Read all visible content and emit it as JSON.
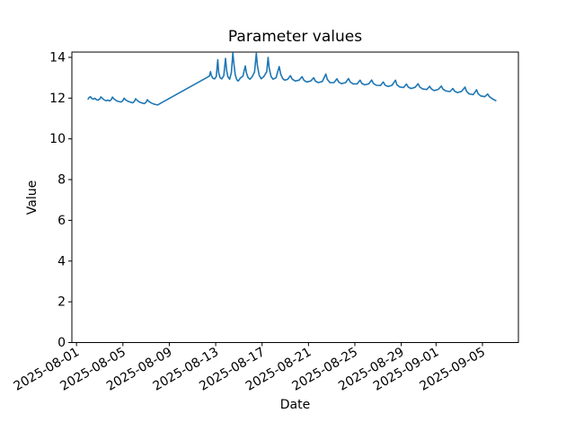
{
  "figure": {
    "background": "#ffffff"
  },
  "chart_data": {
    "type": "line",
    "title": "Parameter values",
    "xlabel": "Date",
    "ylabel": "Value",
    "grid": false,
    "legend": "none",
    "axis_color": "#000000",
    "tick_label_color": "#000000",
    "x_start_date": "2025-08-01",
    "x_unit": "days since 2025-08-01",
    "xlim_days": [
      -0.4,
      38.1
    ],
    "ylim": [
      0,
      14.26
    ],
    "yticks": [
      0,
      2,
      4,
      6,
      8,
      10,
      12,
      14
    ],
    "xticks": [
      {
        "day": 0,
        "label": "2025-08-01"
      },
      {
        "day": 4,
        "label": "2025-08-05"
      },
      {
        "day": 8,
        "label": "2025-08-09"
      },
      {
        "day": 12,
        "label": "2025-08-13"
      },
      {
        "day": 16,
        "label": "2025-08-17"
      },
      {
        "day": 20,
        "label": "2025-08-21"
      },
      {
        "day": 24,
        "label": "2025-08-25"
      },
      {
        "day": 28,
        "label": "2025-08-29"
      },
      {
        "day": 31,
        "label": "2025-09-01"
      },
      {
        "day": 35,
        "label": "2025-09-05"
      }
    ],
    "series": [
      {
        "name": "parameter",
        "color": "#1f77b4",
        "line_width": 1.6,
        "points": [
          [
            1.0,
            11.96
          ],
          [
            1.1,
            12.04
          ],
          [
            1.2,
            12.07
          ],
          [
            1.3,
            11.99
          ],
          [
            1.45,
            11.95
          ],
          [
            1.6,
            11.99
          ],
          [
            1.7,
            11.93
          ],
          [
            1.85,
            11.9
          ],
          [
            2.0,
            11.95
          ],
          [
            2.1,
            12.06
          ],
          [
            2.25,
            11.98
          ],
          [
            2.4,
            11.91
          ],
          [
            2.55,
            11.87
          ],
          [
            2.7,
            11.9
          ],
          [
            2.85,
            11.86
          ],
          [
            3.0,
            11.93
          ],
          [
            3.1,
            12.05
          ],
          [
            3.25,
            11.95
          ],
          [
            3.45,
            11.87
          ],
          [
            3.65,
            11.83
          ],
          [
            3.85,
            11.81
          ],
          [
            4.0,
            11.88
          ],
          [
            4.1,
            12.0
          ],
          [
            4.25,
            11.91
          ],
          [
            4.45,
            11.84
          ],
          [
            4.65,
            11.8
          ],
          [
            4.85,
            11.77
          ],
          [
            5.0,
            11.85
          ],
          [
            5.1,
            11.97
          ],
          [
            5.25,
            11.88
          ],
          [
            5.45,
            11.8
          ],
          [
            5.65,
            11.76
          ],
          [
            5.85,
            11.73
          ],
          [
            6.0,
            11.8
          ],
          [
            6.1,
            11.92
          ],
          [
            6.25,
            11.83
          ],
          [
            6.45,
            11.76
          ],
          [
            6.65,
            11.71
          ],
          [
            6.85,
            11.68
          ],
          [
            7.0,
            11.67
          ],
          [
            11.45,
            13.08
          ],
          [
            11.55,
            13.3
          ],
          [
            11.62,
            13.12
          ],
          [
            11.75,
            12.98
          ],
          [
            11.9,
            12.94
          ],
          [
            12.05,
            13.05
          ],
          [
            12.18,
            13.88
          ],
          [
            12.26,
            13.25
          ],
          [
            12.38,
            13.0
          ],
          [
            12.52,
            12.94
          ],
          [
            12.7,
            13.1
          ],
          [
            12.85,
            13.95
          ],
          [
            12.95,
            13.35
          ],
          [
            13.05,
            13.05
          ],
          [
            13.2,
            12.93
          ],
          [
            13.35,
            13.25
          ],
          [
            13.48,
            14.22
          ],
          [
            13.56,
            13.75
          ],
          [
            13.68,
            13.15
          ],
          [
            13.82,
            12.9
          ],
          [
            13.95,
            12.84
          ],
          [
            14.15,
            13.0
          ],
          [
            14.35,
            13.08
          ],
          [
            14.55,
            13.58
          ],
          [
            14.66,
            13.22
          ],
          [
            14.8,
            13.0
          ],
          [
            14.95,
            12.93
          ],
          [
            15.15,
            13.05
          ],
          [
            15.35,
            13.28
          ],
          [
            15.5,
            14.2
          ],
          [
            15.6,
            13.6
          ],
          [
            15.75,
            13.12
          ],
          [
            15.92,
            12.95
          ],
          [
            16.15,
            13.05
          ],
          [
            16.4,
            13.3
          ],
          [
            16.52,
            14.0
          ],
          [
            16.62,
            13.45
          ],
          [
            16.78,
            13.05
          ],
          [
            16.95,
            12.93
          ],
          [
            17.2,
            13.0
          ],
          [
            17.48,
            13.55
          ],
          [
            17.6,
            13.18
          ],
          [
            17.78,
            12.96
          ],
          [
            17.95,
            12.88
          ],
          [
            18.2,
            12.92
          ],
          [
            18.45,
            13.1
          ],
          [
            18.6,
            12.93
          ],
          [
            18.85,
            12.84
          ],
          [
            19.2,
            12.88
          ],
          [
            19.45,
            13.05
          ],
          [
            19.6,
            12.88
          ],
          [
            19.85,
            12.79
          ],
          [
            20.2,
            12.84
          ],
          [
            20.45,
            13.0
          ],
          [
            20.6,
            12.83
          ],
          [
            20.85,
            12.76
          ],
          [
            21.2,
            12.82
          ],
          [
            21.5,
            13.18
          ],
          [
            21.62,
            12.92
          ],
          [
            21.85,
            12.76
          ],
          [
            22.2,
            12.76
          ],
          [
            22.45,
            12.95
          ],
          [
            22.6,
            12.79
          ],
          [
            22.85,
            12.71
          ],
          [
            23.2,
            12.76
          ],
          [
            23.45,
            12.96
          ],
          [
            23.6,
            12.79
          ],
          [
            23.85,
            12.7
          ],
          [
            24.2,
            12.7
          ],
          [
            24.45,
            12.88
          ],
          [
            24.6,
            12.72
          ],
          [
            24.85,
            12.65
          ],
          [
            25.2,
            12.7
          ],
          [
            25.45,
            12.89
          ],
          [
            25.6,
            12.72
          ],
          [
            25.85,
            12.63
          ],
          [
            26.2,
            12.62
          ],
          [
            26.45,
            12.79
          ],
          [
            26.6,
            12.64
          ],
          [
            26.85,
            12.57
          ],
          [
            27.2,
            12.63
          ],
          [
            27.5,
            12.88
          ],
          [
            27.62,
            12.66
          ],
          [
            27.85,
            12.55
          ],
          [
            28.2,
            12.52
          ],
          [
            28.45,
            12.69
          ],
          [
            28.6,
            12.54
          ],
          [
            28.85,
            12.47
          ],
          [
            29.2,
            12.53
          ],
          [
            29.45,
            12.71
          ],
          [
            29.6,
            12.54
          ],
          [
            29.85,
            12.45
          ],
          [
            30.2,
            12.42
          ],
          [
            30.45,
            12.58
          ],
          [
            30.6,
            12.45
          ],
          [
            30.85,
            12.37
          ],
          [
            31.2,
            12.43
          ],
          [
            31.45,
            12.59
          ],
          [
            31.6,
            12.44
          ],
          [
            31.85,
            12.35
          ],
          [
            32.2,
            12.32
          ],
          [
            32.45,
            12.47
          ],
          [
            32.6,
            12.34
          ],
          [
            32.85,
            12.27
          ],
          [
            33.2,
            12.33
          ],
          [
            33.5,
            12.54
          ],
          [
            33.62,
            12.34
          ],
          [
            33.85,
            12.21
          ],
          [
            34.2,
            12.17
          ],
          [
            34.5,
            12.41
          ],
          [
            34.62,
            12.22
          ],
          [
            34.85,
            12.11
          ],
          [
            35.2,
            12.07
          ],
          [
            35.45,
            12.2
          ],
          [
            35.6,
            12.07
          ],
          [
            35.85,
            11.97
          ],
          [
            36.0,
            11.92
          ],
          [
            36.15,
            11.88
          ]
        ]
      }
    ]
  }
}
